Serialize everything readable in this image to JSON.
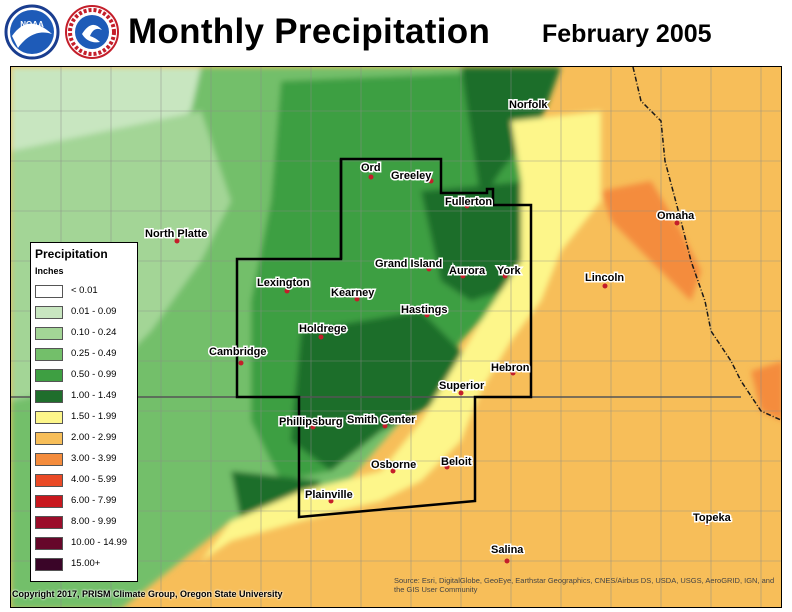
{
  "header": {
    "title": "Monthly Precipitation",
    "date": "February 2005",
    "logos": [
      "noaa-logo",
      "national-weather-service-logo"
    ]
  },
  "legend": {
    "title": "Precipitation",
    "units": "Inches",
    "classes": [
      {
        "label": "< 0.01",
        "color": "#ffffff"
      },
      {
        "label": "0.01 - 0.09",
        "color": "#c8e6c0"
      },
      {
        "label": "0.10 - 0.24",
        "color": "#a3d596"
      },
      {
        "label": "0.25 - 0.49",
        "color": "#73bf6a"
      },
      {
        "label": "0.50 - 0.99",
        "color": "#3e9f42"
      },
      {
        "label": "1.00 - 1.49",
        "color": "#1f6e2c"
      },
      {
        "label": "1.50 - 1.99",
        "color": "#fdf68a"
      },
      {
        "label": "2.00 - 2.99",
        "color": "#f7be59"
      },
      {
        "label": "3.00 - 3.99",
        "color": "#f48c3d"
      },
      {
        "label": "4.00 - 5.99",
        "color": "#ea4a26"
      },
      {
        "label": "6.00 - 7.99",
        "color": "#c8181e"
      },
      {
        "label": "8.00 - 9.99",
        "color": "#9b0d2a"
      },
      {
        "label": "10.00 - 14.99",
        "color": "#66072a"
      },
      {
        "label": "15.00+",
        "color": "#3a0528"
      }
    ]
  },
  "cities": [
    {
      "name": "Norfolk"
    },
    {
      "name": "Ord"
    },
    {
      "name": "Greeley"
    },
    {
      "name": "Fullerton"
    },
    {
      "name": "Omaha"
    },
    {
      "name": "North Platte"
    },
    {
      "name": "Grand Island"
    },
    {
      "name": "Aurora"
    },
    {
      "name": "York"
    },
    {
      "name": "Lincoln"
    },
    {
      "name": "Lexington"
    },
    {
      "name": "Kearney"
    },
    {
      "name": "Hastings"
    },
    {
      "name": "Holdrege"
    },
    {
      "name": "Cambridge"
    },
    {
      "name": "Hebron"
    },
    {
      "name": "Superior"
    },
    {
      "name": "Phillipsburg"
    },
    {
      "name": "Smith Center"
    },
    {
      "name": "Osborne"
    },
    {
      "name": "Beloit"
    },
    {
      "name": "Plainville"
    },
    {
      "name": "Topeka"
    },
    {
      "name": "Salina"
    }
  ],
  "footer": {
    "copyright": "Copyright 2017, PRISM Climate Group, Oregon State University",
    "source": "Source: Esri, DigitalGlobe, GeoEye, Earthstar Geographics, CNES/Airbus DS, USDA, USGS, AeroGRID, IGN, and the GIS User Community"
  }
}
